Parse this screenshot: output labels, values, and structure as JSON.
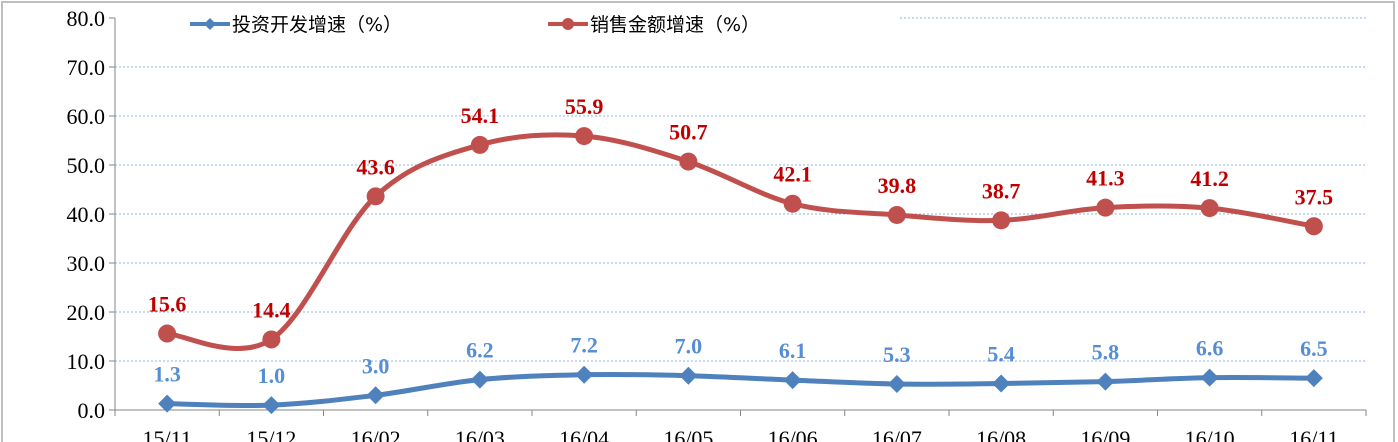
{
  "chart_data": {
    "type": "line",
    "title": "",
    "xlabel": "",
    "ylabel": "",
    "categories": [
      "15/11",
      "15/12",
      "16/02",
      "16/03",
      "16/04",
      "16/05",
      "16/06",
      "16/07",
      "16/08",
      "16/09",
      "16/10",
      "16/11"
    ],
    "ylim": [
      0,
      80
    ],
    "yticks": [
      "0.0",
      "10.0",
      "20.0",
      "30.0",
      "40.0",
      "50.0",
      "60.0",
      "70.0",
      "80.0"
    ],
    "grid": true,
    "legend_position": "top",
    "series": [
      {
        "name": "投资开发增速（%）",
        "color": "#4f81bd",
        "label_color": "#558ed5",
        "marker": "diamond",
        "values": [
          1.3,
          1.0,
          3.0,
          6.2,
          7.2,
          7.0,
          6.1,
          5.3,
          5.4,
          5.8,
          6.6,
          6.5
        ],
        "labels": [
          "1.3",
          "1.0",
          "3.0",
          "6.2",
          "7.2",
          "7.0",
          "6.1",
          "5.3",
          "5.4",
          "5.8",
          "6.6",
          "6.5"
        ]
      },
      {
        "name": "销售金额增速（%）",
        "color": "#c0504d",
        "label_color": "#c00000",
        "marker": "circle",
        "values": [
          15.6,
          14.4,
          43.6,
          54.1,
          55.9,
          50.7,
          42.1,
          39.8,
          38.7,
          41.3,
          41.2,
          37.5
        ],
        "labels": [
          "15.6",
          "14.4",
          "43.6",
          "54.1",
          "55.9",
          "50.7",
          "42.1",
          "39.8",
          "38.7",
          "41.3",
          "41.2",
          "37.5"
        ]
      }
    ]
  }
}
